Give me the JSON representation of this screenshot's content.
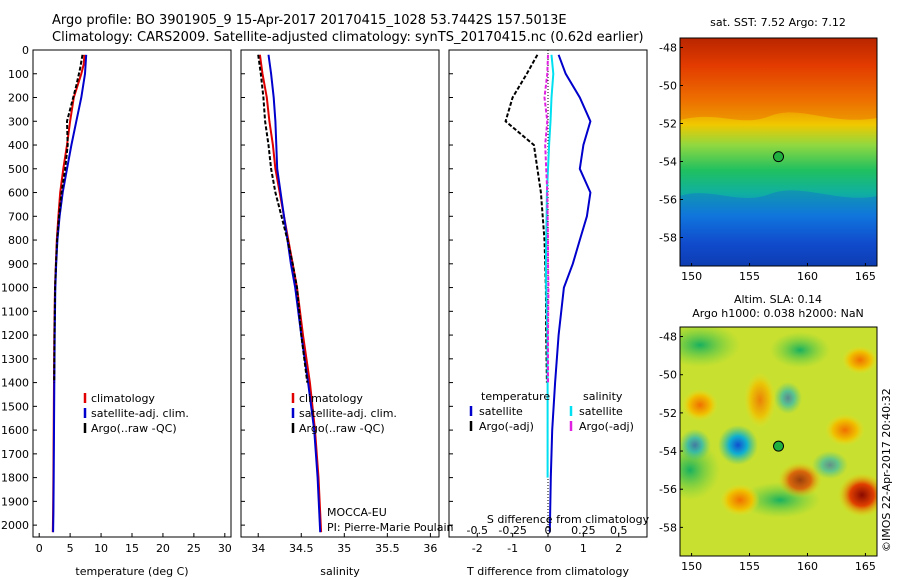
{
  "header": {
    "line1": "Argo profile: BO 3901905_9 15-Apr-2017 20170415_1028 53.7442S 157.5013E",
    "line2": "Climatology: CARS2009. Satellite-adjusted climatology: synTS_20170415.nc (0.62d earlier)"
  },
  "colors": {
    "climatology": "#e00000",
    "satellite": "#0000cc",
    "argo": "#000000",
    "salinity_satellite": "#00e0f0",
    "salinity_argo": "#e020e0"
  },
  "chart_data": [
    {
      "id": "temperature",
      "type": "line",
      "xlabel": "temperature (deg C)",
      "ylabel": "",
      "xlim": [
        -1,
        31
      ],
      "ylim": [
        2050,
        0
      ],
      "xticks": [
        0,
        5,
        10,
        15,
        20,
        25,
        30
      ],
      "yticks": [
        0,
        100,
        200,
        300,
        400,
        500,
        600,
        700,
        800,
        900,
        1000,
        1100,
        1200,
        1300,
        1400,
        1500,
        1600,
        1700,
        1800,
        1900,
        2000
      ],
      "legend": [
        "climatology",
        "satellite-adj. clim.",
        "Argo(..raw -QC)"
      ],
      "legend_placement": "lower-center",
      "series": [
        {
          "name": "climatology",
          "color": "#e00000",
          "dash": false,
          "x": [
            7.3,
            7.2,
            6.8,
            5.6,
            5.0,
            4.5,
            3.9,
            3.4,
            3.1,
            2.85,
            2.7,
            2.55,
            2.45,
            2.4,
            2.35,
            2.3,
            2.25,
            2.2
          ],
          "y": [
            20,
            60,
            100,
            200,
            300,
            400,
            500,
            600,
            700,
            800,
            900,
            1000,
            1200,
            1400,
            1600,
            1800,
            1950,
            2030
          ]
        },
        {
          "name": "satellite-adj. clim.",
          "color": "#0000cc",
          "dash": false,
          "x": [
            7.6,
            7.5,
            7.4,
            6.8,
            6.0,
            5.2,
            4.5,
            3.8,
            3.3,
            2.95,
            2.75,
            2.6,
            2.5,
            2.45,
            2.4,
            2.35,
            2.3,
            2.25
          ],
          "y": [
            20,
            60,
            100,
            200,
            300,
            400,
            500,
            600,
            700,
            800,
            900,
            1000,
            1200,
            1400,
            1600,
            1800,
            1950,
            2030
          ]
        },
        {
          "name": "Argo(..raw -QC)",
          "color": "#000000",
          "dash": true,
          "x": [
            7.0,
            6.6,
            6.0,
            5.0,
            4.5,
            4.6,
            4.2,
            3.6,
            3.2,
            2.9,
            2.72,
            2.57,
            2.47,
            2.42
          ],
          "y": [
            20,
            80,
            150,
            250,
            300,
            400,
            500,
            600,
            700,
            800,
            900,
            1000,
            1200,
            1400
          ]
        }
      ]
    },
    {
      "id": "salinity",
      "type": "line",
      "xlabel": "salinity",
      "ylabel": "",
      "xlim": [
        33.8,
        36.1
      ],
      "ylim": [
        2050,
        0
      ],
      "xticks": [
        34,
        34.5,
        35,
        35.5,
        36
      ],
      "legend": [
        "climatology",
        "satellite-adj. clim.",
        "Argo(..raw -QC)"
      ],
      "legend_placement": "lower-center",
      "annotations": [
        "MOCCA-EU",
        "PI: Pierre-Marie Poulain"
      ],
      "series": [
        {
          "name": "climatology",
          "color": "#e00000",
          "dash": false,
          "x": [
            34.02,
            34.05,
            34.1,
            34.13,
            34.17,
            34.2,
            34.25,
            34.3,
            34.35,
            34.4,
            34.45,
            34.52,
            34.6,
            34.66,
            34.7,
            34.72,
            34.73
          ],
          "y": [
            20,
            100,
            200,
            300,
            400,
            500,
            600,
            700,
            800,
            900,
            1000,
            1200,
            1400,
            1600,
            1800,
            1950,
            2030
          ]
        },
        {
          "name": "satellite-adj. clim.",
          "color": "#0000cc",
          "dash": false,
          "x": [
            34.12,
            34.15,
            34.18,
            34.2,
            34.21,
            34.22,
            34.26,
            34.3,
            34.34,
            34.38,
            34.43,
            34.5,
            34.58,
            34.65,
            34.69,
            34.71,
            34.72
          ],
          "y": [
            20,
            100,
            200,
            300,
            400,
            500,
            600,
            700,
            800,
            900,
            1000,
            1200,
            1400,
            1600,
            1800,
            1950,
            2030
          ]
        },
        {
          "name": "Argo(..raw -QC)",
          "color": "#000000",
          "dash": true,
          "x": [
            34.0,
            34.03,
            34.06,
            34.08,
            34.12,
            34.15,
            34.2,
            34.27,
            34.34,
            34.4,
            34.45,
            34.5,
            34.57
          ],
          "y": [
            20,
            100,
            200,
            300,
            400,
            500,
            600,
            700,
            800,
            900,
            1000,
            1200,
            1400
          ]
        }
      ]
    },
    {
      "id": "difference",
      "type": "line",
      "xlabel": "T difference from climatology",
      "x2label": "S difference from climatology",
      "ylabel": "",
      "xlim": [
        -2.8,
        2.8
      ],
      "ylim": [
        2050,
        0
      ],
      "xticks": [
        -2,
        -1,
        0,
        1,
        2
      ],
      "x2lim": [
        -0.7,
        0.7
      ],
      "x2ticks": [
        -0.5,
        -0.25,
        0,
        0.25,
        0.5
      ],
      "x2ticklabels": [
        "-0.5",
        "-0.25",
        "0",
        "0.25",
        "0.5"
      ],
      "legend_temperature_title": "temperature",
      "legend_salinity_title": "salinity",
      "legend": [
        "satellite",
        "Argo(-adj)",
        "satellite",
        "Argo(-adj)"
      ],
      "legend_placement": "lower-center",
      "series": [
        {
          "name": "temperature satellite",
          "color": "#0000cc",
          "dash": false,
          "x": [
            0.3,
            0.5,
            0.9,
            1.2,
            1.0,
            0.9,
            1.2,
            1.1,
            0.9,
            0.7,
            0.45,
            0.3,
            0.2,
            0.12,
            0.08,
            0.05
          ],
          "y": [
            20,
            100,
            200,
            300,
            400,
            500,
            600,
            700,
            800,
            900,
            1000,
            1200,
            1400,
            1600,
            1800,
            2030
          ]
        },
        {
          "name": "temperature Argo(-adj)",
          "color": "#000000",
          "dash": true,
          "x": [
            -0.3,
            -0.6,
            -1.0,
            -1.2,
            -0.4,
            -0.3,
            -0.2,
            -0.15,
            -0.1,
            -0.08,
            -0.06,
            -0.05,
            -0.03
          ],
          "y": [
            20,
            100,
            200,
            300,
            400,
            500,
            600,
            700,
            800,
            900,
            1000,
            1200,
            1400
          ]
        },
        {
          "name": "salinity satellite",
          "color": "#00e0f0",
          "dash": false,
          "x": [
            0.1,
            0.15,
            0.1,
            0.07,
            0.03,
            0.0,
            -0.03,
            -0.04,
            -0.05,
            -0.06,
            -0.05,
            -0.02,
            -0.01,
            -0.01,
            -0.01
          ],
          "y": [
            20,
            100,
            200,
            300,
            400,
            500,
            600,
            700,
            800,
            900,
            1000,
            1200,
            1400,
            1600,
            1800
          ]
        },
        {
          "name": "salinity Argo(-adj)",
          "color": "#e020e0",
          "dash": true,
          "x": [
            0.0,
            -0.02,
            -0.1,
            -0.02,
            -0.08,
            -0.05,
            -0.02,
            -0.01,
            0.0,
            0.0,
            0.01,
            0.0,
            0.0
          ],
          "y": [
            20,
            100,
            200,
            300,
            400,
            500,
            600,
            700,
            800,
            900,
            1000,
            1200,
            1400
          ]
        }
      ]
    },
    {
      "id": "sst_map",
      "type": "heatmap",
      "title": "sat. SST: 7.52 Argo: 7.12",
      "xlim": [
        149,
        166
      ],
      "ylim": [
        -59.5,
        -47.5
      ],
      "xticks": [
        150,
        155,
        160,
        165
      ],
      "yticks": [
        -48,
        -50,
        -52,
        -54,
        -56,
        -58
      ],
      "marker": {
        "lon": 157.5013,
        "lat": -53.7442
      }
    },
    {
      "id": "sla_map",
      "type": "heatmap",
      "title": "Altim. SLA: 0.14",
      "subtitle": "Argo h1000: 0.038 h2000: NaN",
      "xlim": [
        149,
        166
      ],
      "ylim": [
        -59.5,
        -47.5
      ],
      "xticks": [
        150,
        155,
        160,
        165
      ],
      "yticks": [
        -48,
        -50,
        -52,
        -54,
        -56,
        -58
      ],
      "marker": {
        "lon": 157.5013,
        "lat": -53.7442
      }
    }
  ],
  "credit": "©IMOS 22-Apr-2017 20:40:32"
}
